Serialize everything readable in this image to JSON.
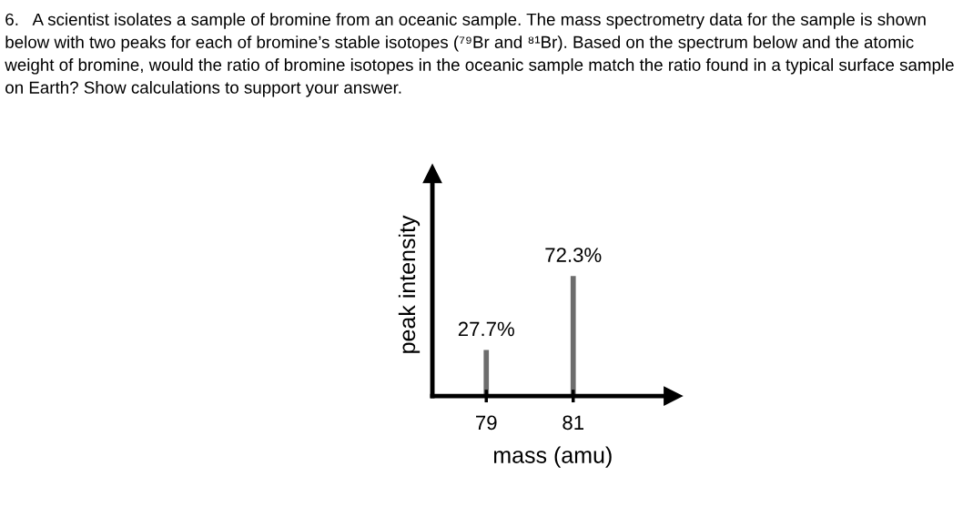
{
  "chart_data": {
    "type": "bar",
    "title": "6.   A scientist isolates a sample of bromine from an oceanic sample. The mass spectrometry data for the sample is shown below with two peaks for each of bromine’s stable isotopes (⁷⁹Br and ⁸¹Br). Based on the spectrum below and the atomic weight of bromine, would the ratio of bromine isotopes in the oceanic sample match the ratio found in a typical surface sample on Earth? Show calculations to support your answer.",
    "xlabel": "mass (amu)",
    "ylabel": "peak intensity",
    "x": [
      79,
      81
    ],
    "values": [
      27.7,
      72.3
    ],
    "color": "#6d6d6d",
    "value_labels": [
      "27.7%",
      "72.3%"
    ],
    "xlim": [
      77.76,
      83.3
    ],
    "xticks": [
      79,
      81
    ],
    "ylim": [
      0,
      134
    ],
    "tick_labels": "x",
    "grid": false,
    "legend": false
  }
}
